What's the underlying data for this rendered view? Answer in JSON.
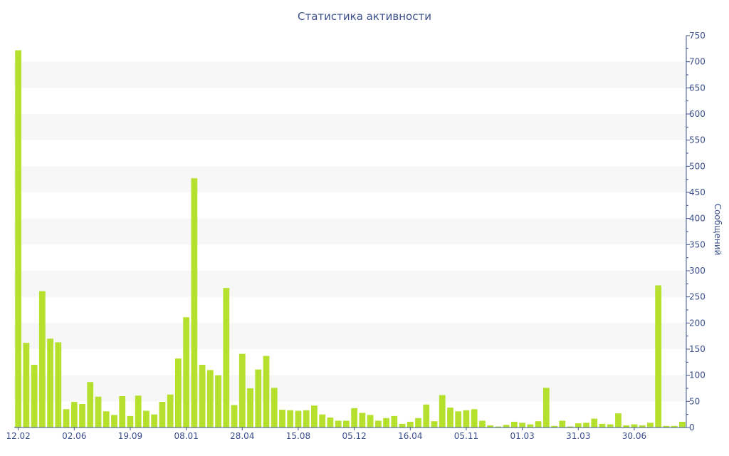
{
  "chart_data": {
    "type": "bar",
    "title": "Статистика активности",
    "xlabel": "",
    "ylabel": "Сообщений",
    "y_axis_side": "right",
    "ylim": [
      0,
      750
    ],
    "y_ticks": [
      0,
      50,
      100,
      150,
      200,
      250,
      300,
      350,
      400,
      450,
      500,
      550,
      600,
      650,
      700,
      750
    ],
    "grid": "alternating horizontal bands",
    "bar_color": "#b5e02d",
    "text_color": "#3b4f8c",
    "band_color": "#f7f7f7",
    "x_tick_labels": [
      {
        "label": "12.02",
        "index": 0
      },
      {
        "label": "02.06",
        "index": 7
      },
      {
        "label": "19.09",
        "index": 14
      },
      {
        "label": "08.01",
        "index": 21
      },
      {
        "label": "28.04",
        "index": 28
      },
      {
        "label": "15.08",
        "index": 35
      },
      {
        "label": "05.12",
        "index": 42
      },
      {
        "label": "16.04",
        "index": 49
      },
      {
        "label": "05.11",
        "index": 56
      },
      {
        "label": "01.03",
        "index": 63
      },
      {
        "label": "31.03",
        "index": 70
      },
      {
        "label": "30.06",
        "index": 77
      }
    ],
    "values": [
      722,
      162,
      120,
      261,
      170,
      163,
      35,
      49,
      45,
      87,
      59,
      31,
      24,
      60,
      22,
      61,
      32,
      25,
      49,
      63,
      132,
      211,
      477,
      120,
      110,
      100,
      267,
      43,
      141,
      75,
      111,
      137,
      76,
      34,
      33,
      32,
      33,
      42,
      25,
      19,
      13,
      13,
      37,
      28,
      24,
      13,
      18,
      22,
      7,
      11,
      18,
      44,
      12,
      62,
      38,
      31,
      33,
      35,
      13,
      4,
      2,
      5,
      11,
      9,
      6,
      12,
      76,
      3,
      13,
      2,
      8,
      9,
      17,
      7,
      6,
      27,
      4,
      6,
      4,
      9,
      272,
      3,
      3,
      11
    ]
  }
}
